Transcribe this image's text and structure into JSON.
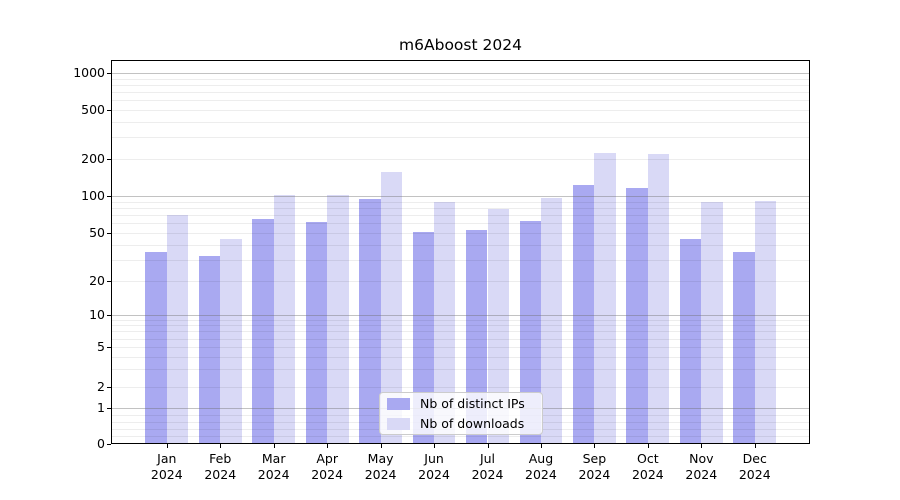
{
  "chart_data": {
    "type": "bar",
    "title": "m6Aboost 2024",
    "categories": [
      "Jan",
      "Feb",
      "Mar",
      "Apr",
      "May",
      "Jun",
      "Jul",
      "Aug",
      "Sep",
      "Oct",
      "Nov",
      "Dec"
    ],
    "category_year": "2024",
    "series": [
      {
        "name": "Nb of distinct IPs",
        "color": "#a9a9f1",
        "values": [
          35,
          32,
          65,
          62,
          95,
          51,
          53,
          63,
          123,
          116,
          45,
          35
        ]
      },
      {
        "name": "Nb of downloads",
        "color": "#d9d9f6",
        "values": [
          70,
          45,
          102,
          102,
          157,
          89,
          79,
          96,
          223,
          220,
          89,
          91
        ]
      }
    ],
    "xlabel": "",
    "ylabel": "",
    "y_axis": {
      "scale": "symlog",
      "ticks": [
        0,
        1,
        2,
        5,
        10,
        20,
        50,
        100,
        200,
        500,
        1000
      ],
      "ylim": [
        0,
        1275
      ]
    },
    "grid": "major and minor horizontal gridlines",
    "legend_position": "lower center"
  }
}
